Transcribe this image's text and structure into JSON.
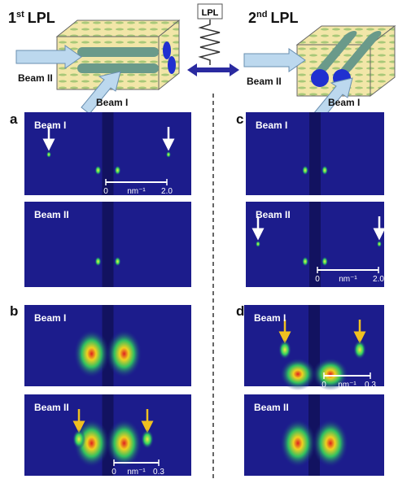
{
  "header": {
    "left_title": {
      "number": "1",
      "sup": "st",
      "text": "LPL"
    },
    "right_title": {
      "number": "2",
      "sup": "nd",
      "text": "LPL"
    },
    "switch_label": "LPL",
    "left_beams": [
      "Beam II",
      "Beam I"
    ],
    "right_beams": [
      "Beam II",
      "Beam I"
    ]
  },
  "panels": [
    {
      "label": "a",
      "images": [
        {
          "beam": "Beam I",
          "scale": {
            "start": "0",
            "unit": "nm⁻¹",
            "end": "2.0"
          }
        },
        {
          "beam": "Beam II"
        }
      ]
    },
    {
      "label": "c",
      "images": [
        {
          "beam": "Beam I"
        },
        {
          "beam": "Beam II",
          "scale": {
            "start": "0",
            "unit": "nm⁻¹",
            "end": "2.0"
          }
        }
      ]
    },
    {
      "label": "b",
      "images": [
        {
          "beam": "Beam I"
        },
        {
          "beam": "Beam II",
          "scale": {
            "start": "0",
            "unit": "nm⁻¹",
            "end": "0.3"
          }
        }
      ]
    },
    {
      "label": "d",
      "images": [
        {
          "beam": "Beam I",
          "scale": {
            "start": "0",
            "unit": "nm⁻¹",
            "end": "0.3"
          }
        },
        {
          "beam": "Beam II"
        }
      ]
    }
  ]
}
